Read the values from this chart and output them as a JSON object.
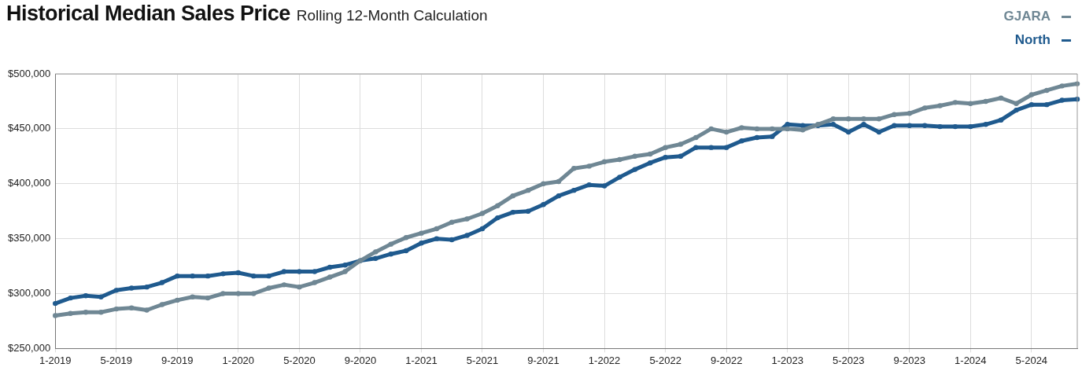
{
  "chart_data": {
    "type": "line",
    "title": "Historical Median Sales Price",
    "subtitle": "Rolling 12-Month Calculation",
    "categories": [
      "1-2019",
      null,
      null,
      null,
      "5-2019",
      null,
      null,
      null,
      "9-2019",
      null,
      null,
      null,
      "1-2020",
      null,
      null,
      null,
      "5-2020",
      null,
      null,
      null,
      "9-2020",
      null,
      null,
      null,
      "1-2021",
      null,
      null,
      null,
      "5-2021",
      null,
      null,
      null,
      "9-2021",
      null,
      null,
      null,
      "1-2022",
      null,
      null,
      null,
      "5-2022",
      null,
      null,
      null,
      "9-2022",
      null,
      null,
      null,
      "1-2023",
      null,
      null,
      null,
      "5-2023",
      null,
      null,
      null,
      "9-2023",
      null,
      null,
      null,
      "1-2024",
      null,
      null,
      null,
      "5-2024",
      null,
      null,
      null
    ],
    "series": [
      {
        "name": "GJARA",
        "color": "#6f8794",
        "values": [
          280000,
          282000,
          283000,
          283000,
          286000,
          287000,
          285000,
          290000,
          294000,
          297000,
          296000,
          300000,
          300000,
          300000,
          305000,
          308000,
          306000,
          310000,
          315000,
          320000,
          330000,
          338000,
          345000,
          351000,
          355000,
          359000,
          365000,
          368000,
          373000,
          380000,
          389000,
          394000,
          400000,
          402000,
          414000,
          416000,
          420000,
          422000,
          425000,
          427000,
          433000,
          436000,
          442000,
          450000,
          447000,
          451000,
          450000,
          450000,
          450000,
          449000,
          454000,
          459000,
          459000,
          459000,
          459000,
          463000,
          464000,
          469000,
          471000,
          474000,
          473000,
          475000,
          478000,
          473000,
          481000,
          485000,
          489000,
          491000
        ]
      },
      {
        "name": "North",
        "color": "#1f5a8e",
        "values": [
          291000,
          296000,
          298000,
          297000,
          303000,
          305000,
          306000,
          310000,
          316000,
          316000,
          316000,
          318000,
          319000,
          316000,
          316000,
          320000,
          320000,
          320000,
          324000,
          326000,
          330000,
          332000,
          336000,
          339000,
          346000,
          350000,
          349000,
          353000,
          359000,
          369000,
          374000,
          375000,
          381000,
          389000,
          394000,
          399000,
          398000,
          406000,
          413000,
          419000,
          424000,
          425000,
          433000,
          433000,
          433000,
          439000,
          442000,
          443000,
          454000,
          453000,
          453000,
          454000,
          447000,
          454000,
          447000,
          453000,
          453000,
          453000,
          452000,
          452000,
          452000,
          454000,
          458000,
          467000,
          472000,
          472000,
          476000,
          477000
        ]
      }
    ],
    "ylim": [
      250000,
      500000
    ],
    "yticks": [
      {
        "value": 250000,
        "label": "$250,000"
      },
      {
        "value": 300000,
        "label": "$300,000"
      },
      {
        "value": 350000,
        "label": "$350,000"
      },
      {
        "value": 400000,
        "label": "$400,000"
      },
      {
        "value": 450000,
        "label": "$450,000"
      },
      {
        "value": 500000,
        "label": "$500,000"
      }
    ],
    "grid": true,
    "legend": "top right",
    "marker": "circle",
    "line_style": "solid"
  }
}
